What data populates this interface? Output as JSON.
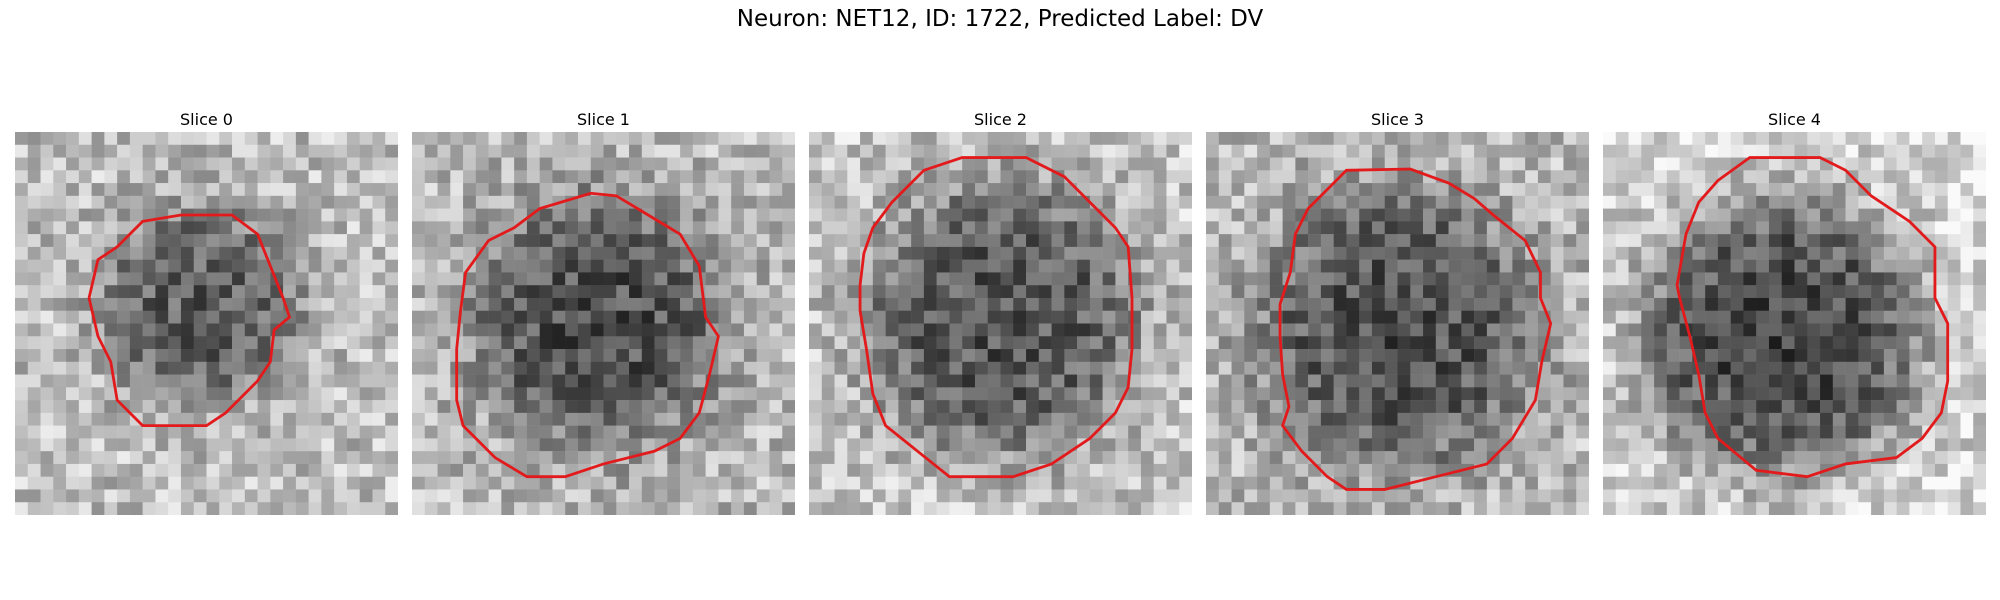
{
  "figure": {
    "title": "Neuron: NET12, ID: 1722, Predicted Label: DV"
  },
  "panels": [
    {
      "title": "Slice 0"
    },
    {
      "title": "Slice 1"
    },
    {
      "title": "Slice 2"
    },
    {
      "title": "Slice 3"
    },
    {
      "title": "Slice 4"
    }
  ],
  "colors": {
    "contour": "#e31a1c",
    "background": "#ffffff"
  }
}
